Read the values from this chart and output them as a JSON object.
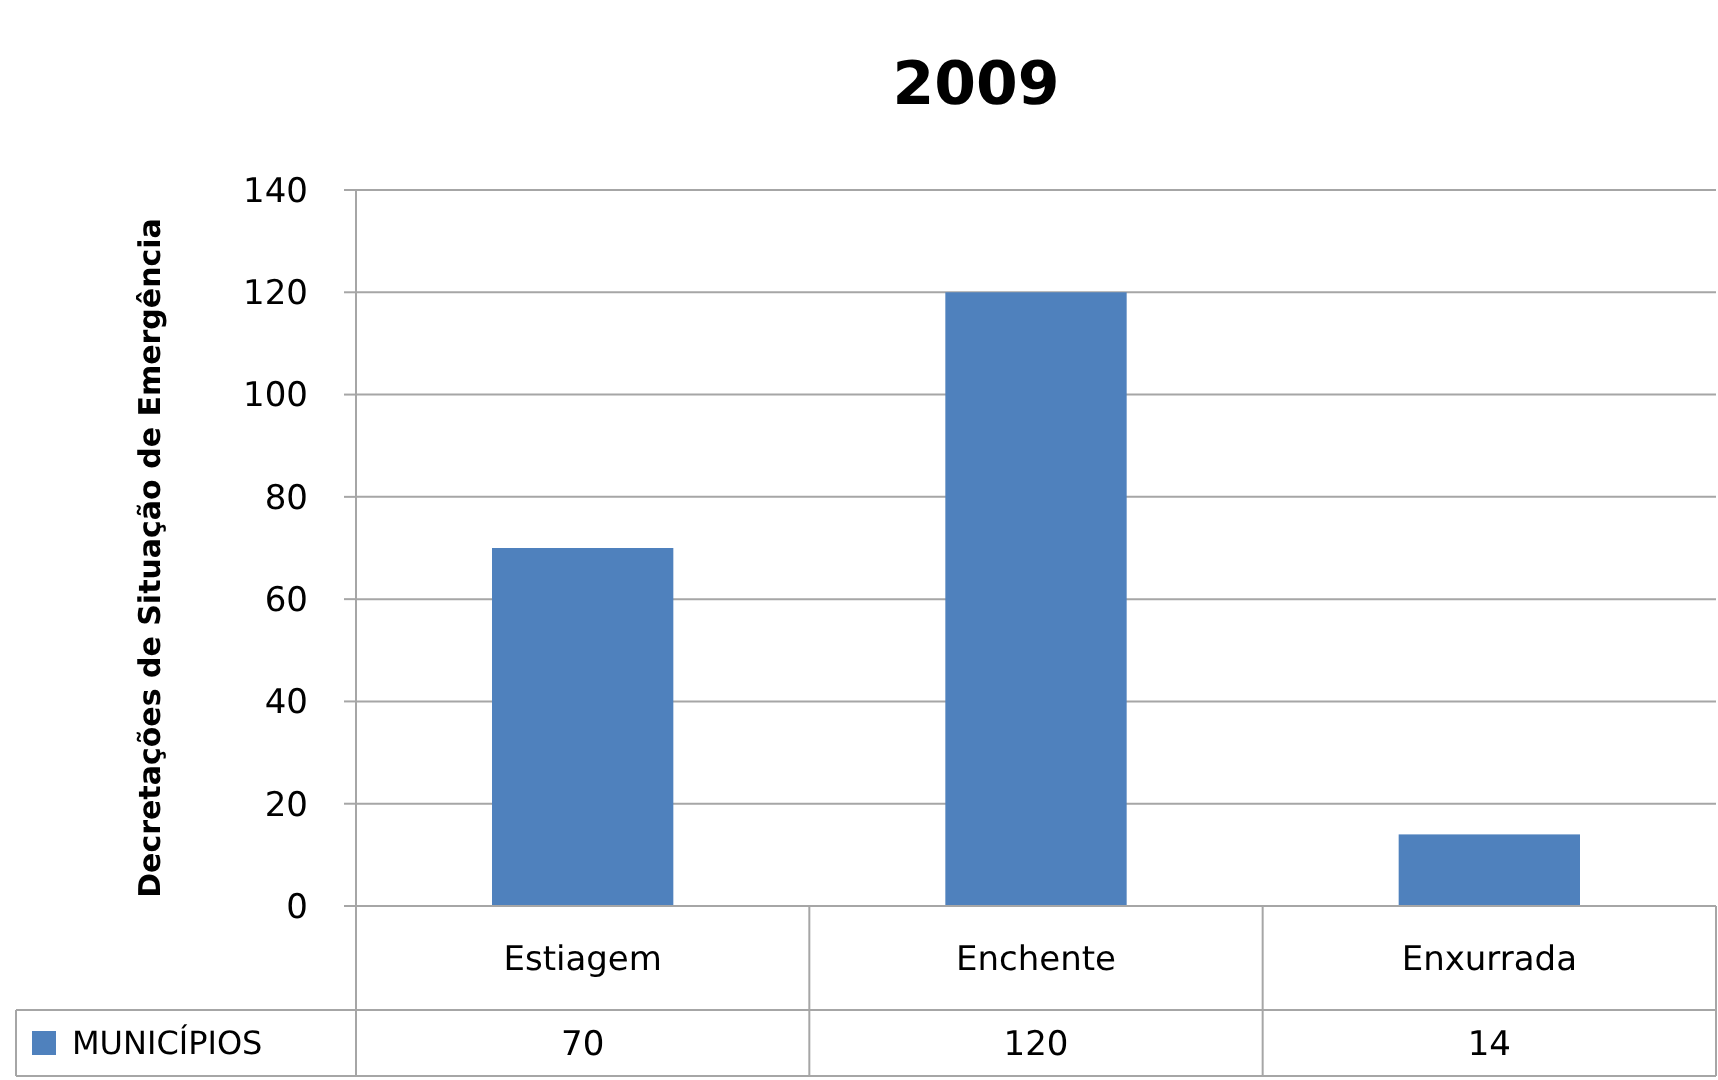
{
  "chart_data": {
    "type": "bar",
    "title": "2009",
    "ylabel": "Decretações de Situação de Emergência",
    "categories": [
      "Estiagem",
      "Enchente",
      "Enxurrada"
    ],
    "series": [
      {
        "name": "MUNICÍPIOS",
        "color": "#4f81bd",
        "values": [
          70,
          120,
          14
        ]
      }
    ],
    "ylim": [
      0,
      140
    ],
    "yticks": [
      0,
      20,
      40,
      60,
      80,
      100,
      120,
      140
    ],
    "grid": "y",
    "legend": "bottom",
    "data_labels": true
  }
}
